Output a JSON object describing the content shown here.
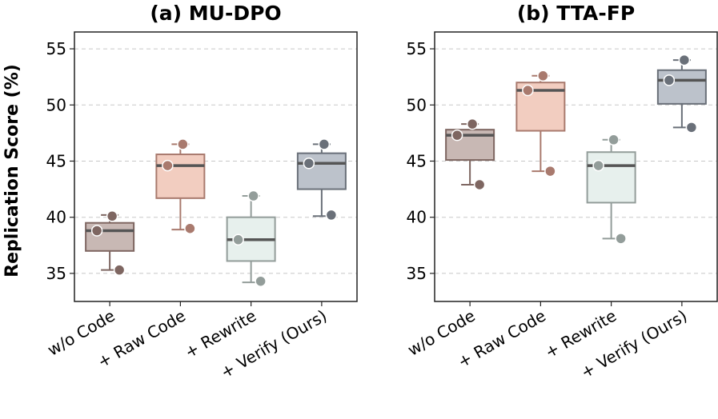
{
  "chart_data": [
    {
      "type": "box",
      "title": "(a) MU-DPO",
      "ylabel": "Replication Score (%)",
      "xlabel": "",
      "ylim": [
        32.5,
        56.5
      ],
      "yticks": [
        35,
        40,
        45,
        50,
        55
      ],
      "grid": "y-dashed",
      "categories": [
        "w/o Code",
        "+ Raw Code",
        "+ Rewrite",
        "+ Verify (Ours)"
      ],
      "boxes": [
        {
          "q1": 37.0,
          "median": 38.8,
          "q3": 39.5,
          "whisker_low": 35.3,
          "whisker_high": 40.2,
          "points": [
            40.1,
            38.8,
            35.3
          ],
          "fill": "#c8b8b4",
          "edge": "#7e6661"
        },
        {
          "q1": 41.7,
          "median": 44.6,
          "q3": 45.6,
          "whisker_low": 38.9,
          "whisker_high": 46.5,
          "points": [
            46.5,
            44.6,
            39.0
          ],
          "fill": "#f2cdc0",
          "edge": "#a97a6e"
        },
        {
          "q1": 36.1,
          "median": 38.0,
          "q3": 40.0,
          "whisker_low": 34.2,
          "whisker_high": 41.9,
          "points": [
            41.9,
            38.0,
            34.3
          ],
          "fill": "#e7f0ed",
          "edge": "#939d9a"
        },
        {
          "q1": 42.5,
          "median": 44.8,
          "q3": 45.7,
          "whisker_low": 40.1,
          "whisker_high": 46.5,
          "points": [
            46.5,
            44.8,
            40.2
          ],
          "fill": "#bcc2cb",
          "edge": "#6a7079"
        }
      ]
    },
    {
      "type": "box",
      "title": "(b) TTA-FP",
      "ylabel": "",
      "xlabel": "",
      "ylim": [
        32.5,
        56.5
      ],
      "yticks": [
        35,
        40,
        45,
        50,
        55
      ],
      "grid": "y-dashed",
      "categories": [
        "w/o Code",
        "+ Raw Code",
        "+ Rewrite",
        "+ Verify (Ours)"
      ],
      "boxes": [
        {
          "q1": 45.1,
          "median": 47.3,
          "q3": 47.8,
          "whisker_low": 42.9,
          "whisker_high": 48.3,
          "points": [
            48.3,
            47.3,
            42.9
          ],
          "fill": "#c8b8b4",
          "edge": "#7e6661"
        },
        {
          "q1": 47.7,
          "median": 51.3,
          "q3": 52.0,
          "whisker_low": 44.1,
          "whisker_high": 52.6,
          "points": [
            52.6,
            51.3,
            44.1
          ],
          "fill": "#f2cdc0",
          "edge": "#a97a6e"
        },
        {
          "q1": 41.3,
          "median": 44.6,
          "q3": 45.8,
          "whisker_low": 38.1,
          "whisker_high": 46.9,
          "points": [
            46.9,
            44.6,
            38.1
          ],
          "fill": "#e7f0ed",
          "edge": "#939d9a"
        },
        {
          "q1": 50.1,
          "median": 52.2,
          "q3": 53.1,
          "whisker_low": 48.0,
          "whisker_high": 54.0,
          "points": [
            54.0,
            52.2,
            48.0
          ],
          "fill": "#bcc2cb",
          "edge": "#6a7079"
        }
      ]
    }
  ],
  "colors": {
    "grid": "#c8c8c8",
    "median": "#555555",
    "point_stroke": "#ffffff"
  }
}
